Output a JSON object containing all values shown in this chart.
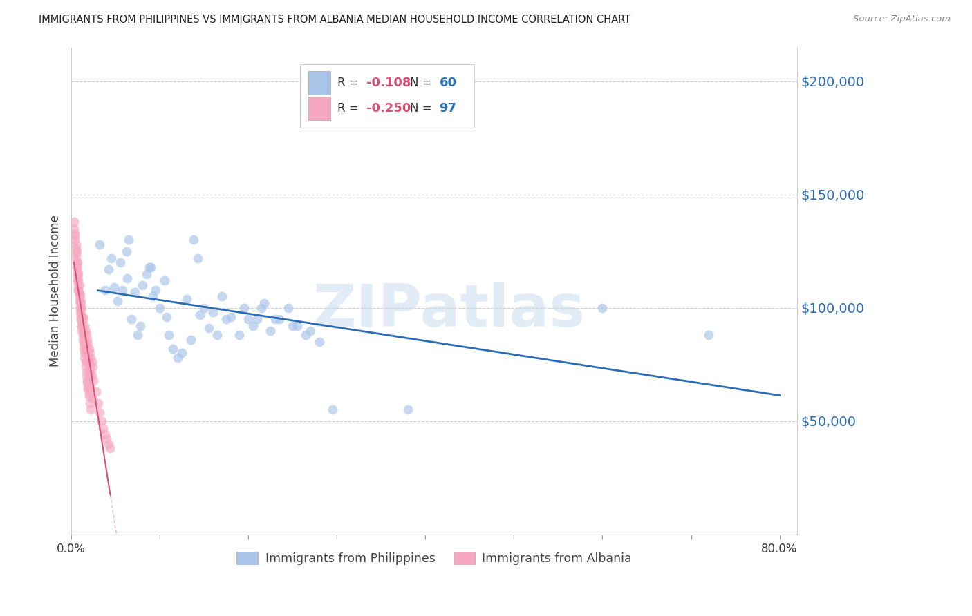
{
  "title": "IMMIGRANTS FROM PHILIPPINES VS IMMIGRANTS FROM ALBANIA MEDIAN HOUSEHOLD INCOME CORRELATION CHART",
  "source": "Source: ZipAtlas.com",
  "ylabel": "Median Household Income",
  "yticks": [
    0,
    50000,
    100000,
    150000,
    200000
  ],
  "ytick_labels": [
    "",
    "$50,000",
    "$100,000",
    "$150,000",
    "$200,000"
  ],
  "ylim": [
    0,
    215000
  ],
  "xlim": [
    0.0,
    0.82
  ],
  "xticks": [
    0.0,
    0.1,
    0.2,
    0.3,
    0.4,
    0.5,
    0.6,
    0.7,
    0.8
  ],
  "xtick_labels": [
    "0.0%",
    "",
    "",
    "",
    "",
    "",
    "",
    "",
    "80.0%"
  ],
  "philippines_color": "#a8c4e8",
  "albania_color": "#f5a8c0",
  "trendline_philippines_color": "#2b6db5",
  "trendline_albania_color": "#d94f72",
  "watermark": "ZIPatlas",
  "r_color": "#d94f72",
  "n_color": "#2b6db5",
  "r_philippines": "-0.108",
  "n_philippines": "60",
  "r_albania": "-0.250",
  "n_albania": "97",
  "philippines_x": [
    0.032,
    0.038,
    0.042,
    0.048,
    0.052,
    0.055,
    0.058,
    0.062,
    0.063,
    0.068,
    0.072,
    0.075,
    0.08,
    0.085,
    0.09,
    0.095,
    0.1,
    0.105,
    0.11,
    0.115,
    0.12,
    0.13,
    0.138,
    0.143,
    0.15,
    0.155,
    0.16,
    0.17,
    0.175,
    0.18,
    0.19,
    0.2,
    0.21,
    0.218,
    0.225,
    0.235,
    0.245,
    0.255,
    0.265,
    0.28,
    0.045,
    0.065,
    0.078,
    0.088,
    0.092,
    0.108,
    0.125,
    0.135,
    0.145,
    0.165,
    0.195,
    0.205,
    0.215,
    0.23,
    0.25,
    0.27,
    0.295,
    0.38,
    0.6,
    0.72
  ],
  "philippines_y": [
    128000,
    108000,
    117000,
    109000,
    103000,
    120000,
    108000,
    125000,
    113000,
    95000,
    107000,
    88000,
    110000,
    115000,
    118000,
    108000,
    100000,
    112000,
    88000,
    82000,
    78000,
    104000,
    130000,
    122000,
    100000,
    91000,
    98000,
    105000,
    95000,
    96000,
    88000,
    95000,
    95000,
    102000,
    90000,
    95000,
    100000,
    92000,
    88000,
    85000,
    122000,
    130000,
    92000,
    118000,
    105000,
    96000,
    80000,
    86000,
    97000,
    88000,
    100000,
    92000,
    100000,
    95000,
    92000,
    90000,
    55000,
    55000,
    100000,
    88000
  ],
  "albania_x": [
    0.004,
    0.005,
    0.005,
    0.006,
    0.006,
    0.007,
    0.007,
    0.008,
    0.008,
    0.009,
    0.009,
    0.01,
    0.01,
    0.011,
    0.011,
    0.012,
    0.012,
    0.013,
    0.013,
    0.014,
    0.014,
    0.015,
    0.015,
    0.016,
    0.016,
    0.017,
    0.017,
    0.018,
    0.018,
    0.019,
    0.019,
    0.02,
    0.02,
    0.021,
    0.021,
    0.022,
    0.022,
    0.023,
    0.023,
    0.024,
    0.003,
    0.004,
    0.005,
    0.006,
    0.007,
    0.008,
    0.009,
    0.01,
    0.011,
    0.012,
    0.013,
    0.014,
    0.015,
    0.016,
    0.017,
    0.018,
    0.019,
    0.02,
    0.021,
    0.022,
    0.003,
    0.004,
    0.005,
    0.006,
    0.007,
    0.008,
    0.009,
    0.01,
    0.011,
    0.012,
    0.013,
    0.014,
    0.015,
    0.016,
    0.017,
    0.018,
    0.019,
    0.02,
    0.025,
    0.028,
    0.03,
    0.032,
    0.034,
    0.036,
    0.038,
    0.04,
    0.042,
    0.044,
    0.008,
    0.01,
    0.012,
    0.014,
    0.016,
    0.018,
    0.02,
    0.022,
    0.024
  ],
  "albania_y": [
    132000,
    128000,
    122000,
    125000,
    118000,
    120000,
    112000,
    115000,
    108000,
    110000,
    103000,
    106000,
    98000,
    103000,
    96000,
    100000,
    92000,
    96000,
    90000,
    95000,
    88000,
    92000,
    86000,
    90000,
    84000,
    88000,
    82000,
    86000,
    80000,
    84000,
    78000,
    82000,
    76000,
    80000,
    74000,
    78000,
    72000,
    76000,
    70000,
    74000,
    135000,
    130000,
    124000,
    118000,
    114000,
    110000,
    105000,
    100000,
    95000,
    90000,
    86000,
    82000,
    78000,
    74000,
    70000,
    67000,
    64000,
    61000,
    58000,
    55000,
    138000,
    133000,
    126000,
    120000,
    116000,
    112000,
    106000,
    102000,
    97000,
    92000,
    88000,
    84000,
    80000,
    76000,
    72000,
    68000,
    65000,
    62000,
    68000,
    63000,
    58000,
    54000,
    50000,
    47000,
    44000,
    42000,
    40000,
    38000,
    108000,
    100000,
    94000,
    88000,
    82000,
    76000,
    70000,
    65000,
    60000
  ]
}
